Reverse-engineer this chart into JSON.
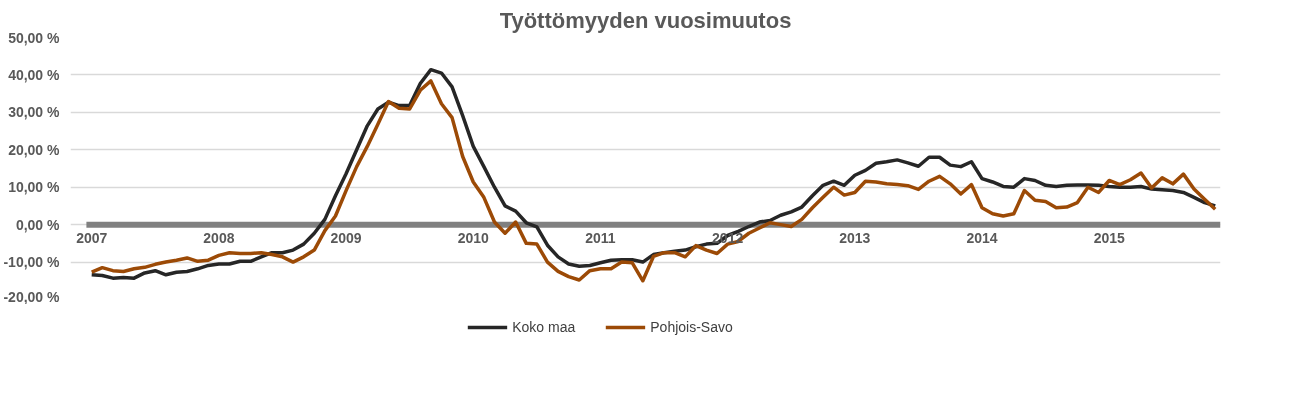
{
  "chart_data": {
    "type": "line",
    "title": "Työttömyyden vuosimuutos",
    "categories": [
      "2007",
      null,
      null,
      null,
      null,
      null,
      null,
      null,
      null,
      null,
      null,
      null,
      "2008",
      null,
      null,
      null,
      null,
      null,
      null,
      null,
      null,
      null,
      null,
      null,
      "2009",
      null,
      null,
      null,
      null,
      null,
      null,
      null,
      null,
      null,
      null,
      null,
      "2010",
      null,
      null,
      null,
      null,
      null,
      null,
      null,
      null,
      null,
      null,
      null,
      "2011",
      null,
      null,
      null,
      null,
      null,
      null,
      null,
      null,
      null,
      null,
      null,
      "2012",
      null,
      null,
      null,
      null,
      null,
      null,
      null,
      null,
      null,
      null,
      null,
      "2013",
      null,
      null,
      null,
      null,
      null,
      null,
      null,
      null,
      null,
      null,
      null,
      "2014",
      null,
      null,
      null,
      null,
      null,
      null,
      null,
      null,
      null,
      null,
      null,
      "2015",
      null,
      null,
      null,
      null,
      null,
      null,
      null,
      null,
      null,
      null
    ],
    "series": [
      {
        "name": "Koko maa",
        "color": "#262626",
        "values": [
          -13.4,
          -13.6,
          -14.3,
          -14.1,
          -14.3,
          -12.9,
          -12.3,
          -13.4,
          -12.7,
          -12.5,
          -11.8,
          -10.9,
          -10.5,
          -10.5,
          -9.8,
          -9.8,
          -8.6,
          -7.5,
          -7.5,
          -6.8,
          -5.2,
          -2.3,
          1.4,
          7.7,
          13.6,
          20,
          26.4,
          30.9,
          32.7,
          31.8,
          31.8,
          37.7,
          41.4,
          40.5,
          36.8,
          29.1,
          20.9,
          15.5,
          10,
          5,
          3.6,
          0.5,
          -0.6,
          -5.5,
          -8.6,
          -10.5,
          -11.1,
          -10.9,
          -10.2,
          -9.5,
          -9.4,
          -9.4,
          -10,
          -8,
          -7.5,
          -7.1,
          -6.8,
          -5.9,
          -5.2,
          -5,
          -2.9,
          -1.8,
          -0.5,
          0.7,
          1.1,
          2.5,
          3.4,
          4.7,
          7.7,
          10.5,
          11.6,
          10.5,
          13.2,
          14.5,
          16.4,
          16.8,
          17.3,
          16.5,
          15.6,
          18,
          18,
          15.9,
          15.5,
          16.8,
          12.3,
          11.4,
          10.2,
          10,
          12.3,
          11.8,
          10.5,
          10.2,
          10.5,
          10.6,
          10.6,
          10.5,
          10.2,
          10,
          10,
          10.2,
          9.5,
          9.3,
          9.1,
          8.6,
          7.3,
          5.9,
          5
        ]
      },
      {
        "name": "Pohjois-Savo",
        "color": "#9c4a06",
        "values": [
          -12.7,
          -11.5,
          -12.3,
          -12.5,
          -11.8,
          -11.4,
          -10.6,
          -10,
          -9.5,
          -8.9,
          -9.8,
          -9.5,
          -8.2,
          -7.5,
          -7.7,
          -7.7,
          -7.5,
          -8,
          -8.6,
          -10,
          -8.6,
          -6.8,
          -1.6,
          2.3,
          9.1,
          15.5,
          20.9,
          26.8,
          32.9,
          31.1,
          30.9,
          35.9,
          38.4,
          32.3,
          28.6,
          18.2,
          11.4,
          7.3,
          0.7,
          -2.3,
          0.7,
          -5,
          -5.2,
          -10,
          -12.5,
          -13.9,
          -14.8,
          -12.3,
          -11.8,
          -11.8,
          -10,
          -10.2,
          -15,
          -8.5,
          -7.5,
          -7.5,
          -8.6,
          -5.6,
          -6.8,
          -7.7,
          -5.2,
          -4.5,
          -2.3,
          -0.9,
          0.5,
          0,
          -0.5,
          1.4,
          4.5,
          7.3,
          10,
          7.9,
          8.6,
          11.6,
          11.4,
          10.9,
          10.7,
          10.4,
          9.4,
          11.6,
          12.9,
          10.9,
          8.2,
          10.7,
          4.5,
          2.9,
          2.3,
          2.9,
          9.1,
          6.5,
          6.2,
          4.5,
          4.7,
          5.9,
          10,
          8.6,
          11.8,
          10.7,
          12,
          13.8,
          9.8,
          12.5,
          10.9,
          13.5,
          9.5,
          6.8,
          4.1
        ]
      }
    ],
    "ylim": [
      -20,
      50
    ],
    "yticks": [
      {
        "value": -20,
        "label": "-20,00 %"
      },
      {
        "value": -10,
        "label": "-10,00 %"
      },
      {
        "value": 0,
        "label": "0,00 %"
      },
      {
        "value": 10,
        "label": "10,00 %"
      },
      {
        "value": 20,
        "label": "20,00 %"
      },
      {
        "value": 30,
        "label": "30,00 %"
      },
      {
        "value": 40,
        "label": "40,00 %"
      },
      {
        "value": 50,
        "label": "50,00 %"
      }
    ],
    "grid": "y",
    "legend": "bottom",
    "marker": "none",
    "line_style": "solid"
  }
}
